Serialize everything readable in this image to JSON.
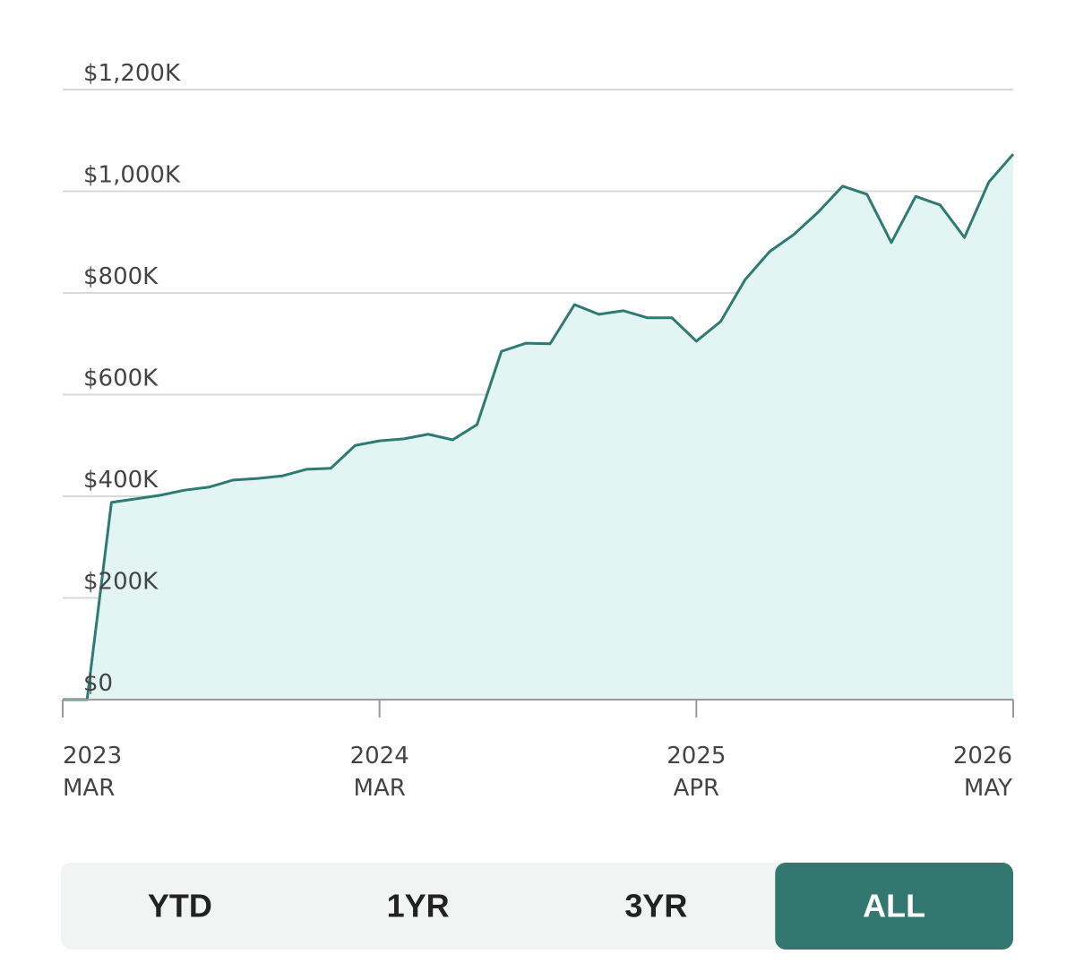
{
  "chart_data": {
    "type": "area-line",
    "categories": [
      [
        "2023",
        "MAR"
      ],
      null,
      null,
      null,
      null,
      null,
      null,
      null,
      null,
      null,
      null,
      null,
      null,
      [
        "2024",
        "MAR"
      ],
      null,
      null,
      null,
      null,
      null,
      null,
      null,
      null,
      null,
      null,
      null,
      null,
      [
        "2025",
        "APR"
      ],
      null,
      null,
      null,
      null,
      null,
      null,
      null,
      null,
      null,
      null,
      null,
      null,
      [
        "2026",
        "MAY"
      ]
    ],
    "values": [
      0,
      0,
      388000,
      395000,
      402000,
      412000,
      418000,
      432000,
      435000,
      440000,
      453000,
      455000,
      500000,
      509000,
      513000,
      522000,
      511000,
      541000,
      685000,
      701000,
      700000,
      777000,
      758000,
      765000,
      751000,
      751000,
      705000,
      744000,
      826000,
      881000,
      915000,
      959000,
      1010000,
      994000,
      899000,
      990000,
      973000,
      909000,
      1018000,
      1073000
    ],
    "color": "#2f7a73",
    "fill": "#e2f5f2",
    "ylim": [
      0,
      1200000
    ],
    "yticks": [
      {
        "value": 0,
        "label": "$0"
      },
      {
        "value": 200000,
        "label": "$200K"
      },
      {
        "value": 400000,
        "label": "$400K"
      },
      {
        "value": 600000,
        "label": "$600K"
      },
      {
        "value": 800000,
        "label": "$800K"
      },
      {
        "value": 1000000,
        "label": "$1,000K"
      },
      {
        "value": 1200000,
        "label": "$1,200K"
      }
    ],
    "grid": true
  },
  "range_buttons": {
    "labels": [
      "YTD",
      "1YR",
      "3YR",
      "ALL"
    ],
    "selected": 3
  }
}
